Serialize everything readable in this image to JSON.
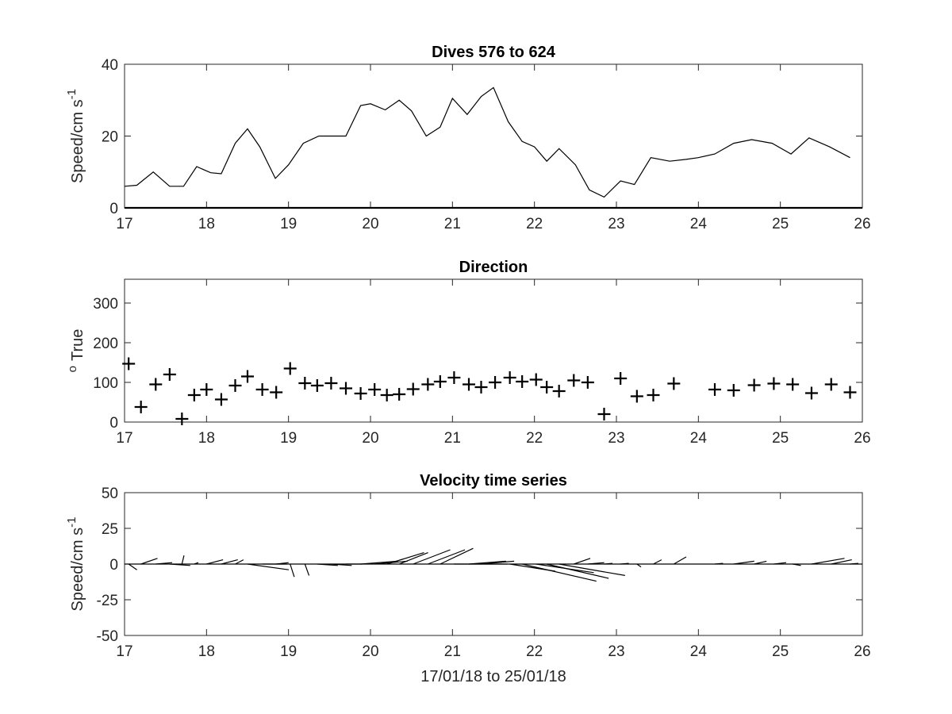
{
  "chart_data": [
    {
      "type": "line",
      "title": "Dives 576 to 624",
      "xlabel": "",
      "ylabel": "Speed/cm s",
      "ylabel_superscript": "-1",
      "xlim": [
        17,
        26
      ],
      "ylim": [
        0,
        40
      ],
      "xticks": [
        17,
        18,
        19,
        20,
        21,
        22,
        23,
        24,
        25,
        26
      ],
      "yticks": [
        0,
        20,
        40
      ],
      "grid": false,
      "series": [
        {
          "color": "#000000",
          "x": [
            17.0,
            17.15,
            17.35,
            17.55,
            17.72,
            17.88,
            18.05,
            18.18,
            18.35,
            18.5,
            18.65,
            18.84,
            19.0,
            19.18,
            19.37,
            19.5,
            19.7,
            19.88,
            20.0,
            20.18,
            20.35,
            20.5,
            20.68,
            20.85,
            21.0,
            21.18,
            21.35,
            21.5,
            21.68,
            21.85,
            22.0,
            22.15,
            22.3,
            22.5,
            22.67,
            22.85,
            23.05,
            23.22,
            23.42,
            23.65,
            23.85,
            24.0,
            24.2,
            24.43,
            24.65,
            24.9,
            25.13,
            25.35,
            25.6,
            25.85
          ],
          "values": [
            6,
            6.3,
            10,
            6,
            6,
            11.5,
            9.8,
            9.5,
            18,
            22,
            17,
            8.2,
            12,
            18,
            20,
            20,
            20,
            28.5,
            29,
            27.3,
            30,
            27,
            20,
            22.5,
            30.5,
            26,
            31,
            33.5,
            24,
            18.5,
            17,
            13,
            16.5,
            12,
            5,
            3,
            7.5,
            6.5,
            14,
            13,
            13.5,
            14,
            15,
            18,
            19,
            18,
            15,
            19.5,
            17,
            14
          ]
        }
      ]
    },
    {
      "type": "scatter",
      "title": "Direction",
      "xlabel": "",
      "ylabel": "True",
      "ylabel_prefix_superscript": "o",
      "xlim": [
        17,
        26
      ],
      "ylim": [
        0,
        360
      ],
      "xticks": [
        17,
        18,
        19,
        20,
        21,
        22,
        23,
        24,
        25,
        26
      ],
      "yticks": [
        0,
        100,
        200,
        300
      ],
      "grid": false,
      "marker": "+",
      "series": [
        {
          "color": "#000000",
          "x": [
            17.05,
            17.2,
            17.38,
            17.55,
            17.7,
            17.85,
            18.0,
            18.18,
            18.35,
            18.5,
            18.68,
            18.85,
            19.02,
            19.2,
            19.35,
            19.52,
            19.7,
            19.88,
            20.05,
            20.2,
            20.35,
            20.52,
            20.7,
            20.85,
            21.02,
            21.2,
            21.35,
            21.52,
            21.7,
            21.85,
            22.02,
            22.15,
            22.3,
            22.48,
            22.65,
            22.85,
            23.05,
            23.25,
            23.45,
            23.7,
            24.2,
            24.43,
            24.68,
            24.92,
            25.15,
            25.38,
            25.62,
            25.85
          ],
          "values": [
            147,
            38,
            95,
            120,
            8,
            68,
            82,
            57,
            92,
            115,
            82,
            75,
            135,
            98,
            92,
            98,
            85,
            72,
            82,
            68,
            70,
            83,
            95,
            102,
            112,
            95,
            88,
            100,
            112,
            102,
            107,
            88,
            78,
            105,
            100,
            20,
            110,
            65,
            68,
            97,
            82,
            80,
            93,
            97,
            95,
            73,
            95,
            75
          ]
        }
      ]
    },
    {
      "type": "quiver",
      "title": "Velocity time series",
      "xlabel": "17/01/18 to 25/01/18",
      "ylabel": "Speed/cm s",
      "ylabel_superscript": "-1",
      "xlim": [
        17,
        26
      ],
      "ylim": [
        -50,
        50
      ],
      "xticks": [
        17,
        18,
        19,
        20,
        21,
        22,
        23,
        24,
        25,
        26
      ],
      "yticks": [
        -50,
        -25,
        0,
        25,
        50
      ],
      "grid": false,
      "baseline": 0,
      "vectors": {
        "color": "#000000",
        "x": [
          17.05,
          17.2,
          17.38,
          17.55,
          17.7,
          17.85,
          18.0,
          18.18,
          18.35,
          18.5,
          18.68,
          18.85,
          19.02,
          19.2,
          19.35,
          19.52,
          19.7,
          19.88,
          20.05,
          20.2,
          20.35,
          20.52,
          20.7,
          20.85,
          21.02,
          21.2,
          21.35,
          21.52,
          21.7,
          21.85,
          22.02,
          22.15,
          22.3,
          22.48,
          22.65,
          22.85,
          23.05,
          23.25,
          23.45,
          23.7,
          24.2,
          24.43,
          24.68,
          24.92,
          25.15,
          25.38,
          25.62,
          25.85
        ],
        "u": [
          2,
          4,
          4,
          5,
          0.5,
          1,
          4,
          4,
          2,
          10,
          6,
          3,
          1,
          1,
          5,
          5,
          4,
          9,
          8,
          9,
          7,
          9,
          9,
          8,
          10,
          9,
          8,
          3,
          11,
          18,
          14,
          15,
          16,
          4,
          4,
          2,
          2,
          1,
          2,
          3,
          2,
          5,
          3,
          3,
          2,
          8,
          5,
          2
        ],
        "v": [
          -4,
          4,
          1,
          -1,
          6,
          1,
          3,
          3,
          3,
          -4,
          0,
          1,
          -9,
          -8,
          -1,
          -1,
          0,
          2,
          2,
          8,
          8,
          10,
          10,
          11,
          0,
          2,
          2,
          0,
          -5,
          -12,
          -6,
          -10,
          -8,
          4,
          1,
          0.5,
          0.5,
          -2,
          3,
          5,
          0.5,
          2,
          2,
          1,
          -1,
          4,
          3,
          0.5
        ]
      }
    }
  ]
}
